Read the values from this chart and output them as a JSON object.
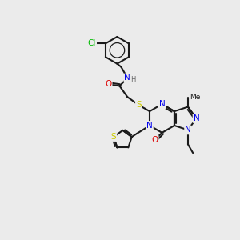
{
  "bg_color": "#ebebeb",
  "bond_color": "#1a1a1a",
  "atom_colors": {
    "N": "#0000ee",
    "O": "#dd0000",
    "S": "#cccc00",
    "Cl": "#00bb00",
    "H": "#666666",
    "C": "#1a1a1a"
  },
  "font_size": 7.5,
  "figsize": [
    3.0,
    3.0
  ],
  "dpi": 100
}
